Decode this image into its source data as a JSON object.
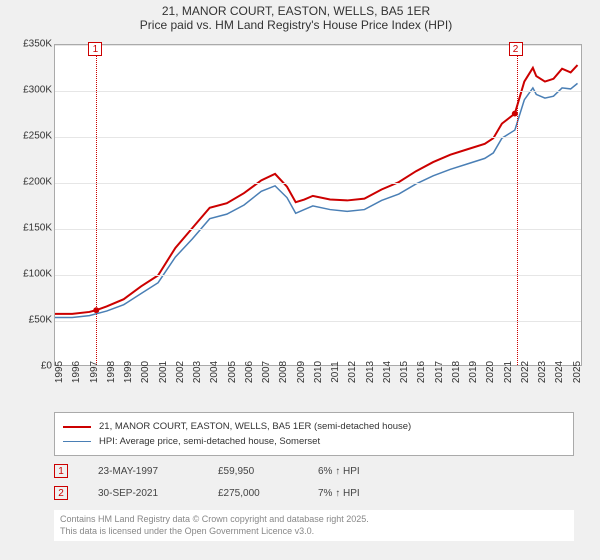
{
  "title_line1": "21, MANOR COURT, EASTON, WELLS, BA5 1ER",
  "title_line2": "Price paid vs. HM Land Registry's House Price Index (HPI)",
  "chart": {
    "type": "line",
    "background_color": "#ffffff",
    "grid_color": "#e6e6e6",
    "axis_color": "#aaaaaa",
    "label_fontsize": 10,
    "ylim": [
      0,
      350000
    ],
    "y_ticks": [
      0,
      50000,
      100000,
      150000,
      200000,
      250000,
      300000,
      350000
    ],
    "y_tick_labels": [
      "£0",
      "£50K",
      "£100K",
      "£150K",
      "£200K",
      "£250K",
      "£300K",
      "£350K"
    ],
    "xlim": [
      1995,
      2025.6
    ],
    "x_ticks": [
      1995,
      1996,
      1997,
      1998,
      1999,
      2000,
      2001,
      2002,
      2003,
      2004,
      2005,
      2006,
      2007,
      2008,
      2009,
      2010,
      2011,
      2012,
      2013,
      2014,
      2015,
      2016,
      2017,
      2018,
      2019,
      2020,
      2021,
      2022,
      2023,
      2024,
      2025
    ],
    "series": [
      {
        "name": "price_paid",
        "label": "21, MANOR COURT, EASTON, WELLS, BA5 1ER (semi-detached house)",
        "color": "#cc0000",
        "line_width": 2,
        "data": [
          [
            1995,
            56000
          ],
          [
            1996,
            56000
          ],
          [
            1997,
            58000
          ],
          [
            1997.4,
            59950
          ],
          [
            1998,
            64000
          ],
          [
            1999,
            72000
          ],
          [
            2000,
            86000
          ],
          [
            2001,
            98000
          ],
          [
            2002,
            128000
          ],
          [
            2003,
            150000
          ],
          [
            2004,
            172000
          ],
          [
            2005,
            177000
          ],
          [
            2006,
            188000
          ],
          [
            2007,
            202000
          ],
          [
            2007.8,
            209000
          ],
          [
            2008.5,
            195000
          ],
          [
            2009,
            178000
          ],
          [
            2009.5,
            181000
          ],
          [
            2010,
            185000
          ],
          [
            2011,
            181000
          ],
          [
            2012,
            180000
          ],
          [
            2013,
            182000
          ],
          [
            2014,
            192000
          ],
          [
            2015,
            200000
          ],
          [
            2016,
            212000
          ],
          [
            2017,
            222000
          ],
          [
            2018,
            230000
          ],
          [
            2019,
            236000
          ],
          [
            2020,
            242000
          ],
          [
            2020.5,
            248000
          ],
          [
            2021,
            264000
          ],
          [
            2021.75,
            275000
          ],
          [
            2022.3,
            310000
          ],
          [
            2022.8,
            325000
          ],
          [
            2023,
            316000
          ],
          [
            2023.5,
            310000
          ],
          [
            2024,
            313000
          ],
          [
            2024.5,
            324000
          ],
          [
            2025,
            320000
          ],
          [
            2025.4,
            328000
          ]
        ]
      },
      {
        "name": "hpi",
        "label": "HPI: Average price, semi-detached house, Somerset",
        "color": "#4a7fb5",
        "line_width": 1.5,
        "data": [
          [
            1995,
            52000
          ],
          [
            1996,
            52000
          ],
          [
            1997,
            54000
          ],
          [
            1998,
            59000
          ],
          [
            1999,
            66000
          ],
          [
            2000,
            78000
          ],
          [
            2001,
            90000
          ],
          [
            2002,
            118000
          ],
          [
            2003,
            138000
          ],
          [
            2004,
            160000
          ],
          [
            2005,
            165000
          ],
          [
            2006,
            175000
          ],
          [
            2007,
            190000
          ],
          [
            2007.8,
            196000
          ],
          [
            2008.5,
            183000
          ],
          [
            2009,
            166000
          ],
          [
            2009.5,
            170000
          ],
          [
            2010,
            174000
          ],
          [
            2011,
            170000
          ],
          [
            2012,
            168000
          ],
          [
            2013,
            170000
          ],
          [
            2014,
            180000
          ],
          [
            2015,
            187000
          ],
          [
            2016,
            198000
          ],
          [
            2017,
            207000
          ],
          [
            2018,
            214000
          ],
          [
            2019,
            220000
          ],
          [
            2020,
            226000
          ],
          [
            2020.5,
            232000
          ],
          [
            2021,
            248000
          ],
          [
            2021.75,
            257000
          ],
          [
            2022.3,
            290000
          ],
          [
            2022.8,
            303000
          ],
          [
            2023,
            296000
          ],
          [
            2023.5,
            292000
          ],
          [
            2024,
            294000
          ],
          [
            2024.5,
            303000
          ],
          [
            2025,
            302000
          ],
          [
            2025.4,
            308000
          ]
        ]
      }
    ],
    "sale_markers": [
      {
        "n": "1",
        "x": 1997.4,
        "color": "#cc0000"
      },
      {
        "n": "2",
        "x": 2021.75,
        "color": "#cc0000"
      }
    ]
  },
  "legend": {
    "items": [
      {
        "color": "#cc0000",
        "width": 2,
        "label": "21, MANOR COURT, EASTON, WELLS, BA5 1ER (semi-detached house)"
      },
      {
        "color": "#4a7fb5",
        "width": 1.5,
        "label": "HPI: Average price, semi-detached house, Somerset"
      }
    ]
  },
  "annotations": [
    {
      "n": "1",
      "color": "#cc0000",
      "date": "23-MAY-1997",
      "price": "£59,950",
      "pct": "6% ↑ HPI"
    },
    {
      "n": "2",
      "color": "#cc0000",
      "date": "30-SEP-2021",
      "price": "£275,000",
      "pct": "7% ↑ HPI"
    }
  ],
  "footer_line1": "Contains HM Land Registry data © Crown copyright and database right 2025.",
  "footer_line2": "This data is licensed under the Open Government Licence v3.0."
}
